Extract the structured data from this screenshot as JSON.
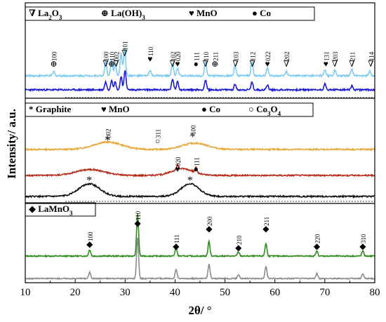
{
  "chart_data": {
    "type": "line",
    "xlabel": "2θ/ °",
    "ylabel": "Intensity/ a.u.",
    "xlim": [
      10,
      80
    ],
    "xticks": [
      10,
      20,
      30,
      40,
      50,
      60,
      70,
      80
    ],
    "grid": false,
    "panels": [
      {
        "id": "top",
        "legend": [
          {
            "symbol": "∇",
            "label": "La2O3"
          },
          {
            "symbol": "⊕",
            "label": "La(OH)3"
          },
          {
            "symbol": "♥",
            "label": "MnO"
          },
          {
            "symbol": "●",
            "label": "Co"
          }
        ],
        "series": [
          {
            "color": "#7ecbf0",
            "baseline": 0.0,
            "peaks": [
              [
                15.7,
                0.15
              ],
              [
                26.1,
                0.5
              ],
              [
                27.3,
                0.55
              ],
              [
                28.0,
                0.45
              ],
              [
                29.2,
                0.8
              ],
              [
                29.9,
                1.0
              ],
              [
                35.0,
                0.2
              ],
              [
                39.5,
                0.45
              ],
              [
                40.5,
                0.3
              ],
              [
                46.1,
                0.55
              ],
              [
                52.0,
                0.35
              ],
              [
                55.4,
                0.5
              ],
              [
                58.5,
                0.3
              ],
              [
                62.3,
                0.15
              ],
              [
                70.0,
                0.2
              ],
              [
                72.0,
                0.2
              ],
              [
                75.4,
                0.25
              ],
              [
                79.0,
                0.15
              ]
            ]
          },
          {
            "color": "#1a1ad6",
            "baseline": 0.0,
            "peaks": [
              [
                26.1,
                0.4
              ],
              [
                27.3,
                0.5
              ],
              [
                28.0,
                0.4
              ],
              [
                29.2,
                0.7
              ],
              [
                30.0,
                1.0
              ],
              [
                39.5,
                0.55
              ],
              [
                40.5,
                0.45
              ],
              [
                46.1,
                0.5
              ],
              [
                52.0,
                0.3
              ],
              [
                55.4,
                0.4
              ],
              [
                58.5,
                0.25
              ],
              [
                70.0,
                0.3
              ],
              [
                75.4,
                0.2
              ]
            ]
          }
        ],
        "annotations": [
          {
            "x": 15.7,
            "symbol": "⊕",
            "label": "100"
          },
          {
            "x": 26.1,
            "symbol": "∇",
            "label": "100"
          },
          {
            "x": 27.3,
            "symbol": "⊕",
            "label": "110"
          },
          {
            "x": 28.2,
            "symbol": "∇",
            "label": "002"
          },
          {
            "x": 29.9,
            "symbol": "∇",
            "label": "101"
          },
          {
            "x": 35.0,
            "symbol": "♥",
            "label": "110"
          },
          {
            "x": 39.5,
            "symbol": "∇",
            "label": "102"
          },
          {
            "x": 40.5,
            "symbol": "♥",
            "label": "020"
          },
          {
            "x": 44.2,
            "symbol": "●",
            "label": "111"
          },
          {
            "x": 46.1,
            "symbol": "∇",
            "label": "110"
          },
          {
            "x": 48.0,
            "symbol": "⊕",
            "label": "211"
          },
          {
            "x": 52.1,
            "symbol": "∇",
            "label": "103"
          },
          {
            "x": 55.5,
            "symbol": "∇",
            "label": "112"
          },
          {
            "x": 58.5,
            "symbol": "♥",
            "label": "022"
          },
          {
            "x": 62.3,
            "symbol": "∇",
            "label": "202"
          },
          {
            "x": 70.2,
            "symbol": "♥",
            "label": "131"
          },
          {
            "x": 72.0,
            "symbol": "∇",
            "label": "203"
          },
          {
            "x": 75.4,
            "symbol": "∇",
            "label": "211"
          },
          {
            "x": 79.2,
            "symbol": "∇",
            "label": "114"
          }
        ]
      },
      {
        "id": "middle",
        "legend": [
          {
            "symbol": "*",
            "label": "Graphite"
          },
          {
            "symbol": "♥",
            "label": "MnO"
          },
          {
            "symbol": "●",
            "label": "Co"
          },
          {
            "symbol": "○",
            "label": "Co3O4"
          }
        ],
        "series": [
          {
            "color": "#e6a93a",
            "baseline": 0.0,
            "broad": [
              [
                26.5,
                4.0,
                0.35
              ],
              [
                44.0,
                3.5,
                0.3
              ]
            ],
            "peaks": []
          },
          {
            "color": "#b52d1a",
            "baseline": 0.0,
            "broad": [
              [
                23.0,
                4.0,
                0.35
              ],
              [
                41.5,
                3.0,
                0.4
              ]
            ],
            "peaks": [
              [
                40.5,
                0.25
              ],
              [
                44.2,
                0.3
              ]
            ]
          },
          {
            "color": "#111111",
            "baseline": 0.0,
            "broad": [
              [
                22.8,
                3.0,
                1.0
              ],
              [
                43.0,
                2.6,
                1.0
              ]
            ],
            "peaks": []
          }
        ],
        "annotations": [
          {
            "x": 26.5,
            "symbol": "*",
            "label": "002"
          },
          {
            "x": 36.5,
            "symbol": "○",
            "label": "311"
          },
          {
            "x": 43.5,
            "symbol": "*",
            "label": "100"
          },
          {
            "x": 40.5,
            "symbol": "♥",
            "label": "020"
          },
          {
            "x": 44.2,
            "symbol": "●",
            "label": "111"
          },
          {
            "x": 22.8,
            "symbol": "*",
            "label": ""
          },
          {
            "x": 43.0,
            "symbol": "*",
            "label": ""
          }
        ]
      },
      {
        "id": "bottom",
        "legend": [
          {
            "symbol": "◆",
            "label": "LaMnO3"
          }
        ],
        "series": [
          {
            "color": "#2f8a1c",
            "baseline": 0.0,
            "peaks": [
              [
                22.9,
                0.15
              ],
              [
                32.5,
                1.0
              ],
              [
                40.2,
                0.2
              ],
              [
                46.8,
                0.35
              ],
              [
                52.7,
                0.1
              ],
              [
                58.2,
                0.3
              ],
              [
                68.4,
                0.12
              ],
              [
                77.6,
                0.12
              ]
            ]
          },
          {
            "color": "#8c8c8c",
            "baseline": 0.0,
            "peaks": [
              [
                22.9,
                0.15
              ],
              [
                32.5,
                1.0
              ],
              [
                40.2,
                0.22
              ],
              [
                46.8,
                0.35
              ],
              [
                52.7,
                0.1
              ],
              [
                58.2,
                0.3
              ],
              [
                68.4,
                0.12
              ],
              [
                77.6,
                0.12
              ]
            ]
          }
        ],
        "annotations": [
          {
            "x": 22.9,
            "symbol": "◆",
            "label": "100"
          },
          {
            "x": 32.5,
            "symbol": "◆",
            "label": "110"
          },
          {
            "x": 40.2,
            "symbol": "◆",
            "label": "111"
          },
          {
            "x": 46.8,
            "symbol": "◆",
            "label": "200"
          },
          {
            "x": 52.7,
            "symbol": "◆",
            "label": "210"
          },
          {
            "x": 58.2,
            "symbol": "◆",
            "label": "211"
          },
          {
            "x": 68.4,
            "symbol": "◆",
            "label": "220"
          },
          {
            "x": 77.6,
            "symbol": "◆",
            "label": "310"
          }
        ]
      }
    ]
  }
}
